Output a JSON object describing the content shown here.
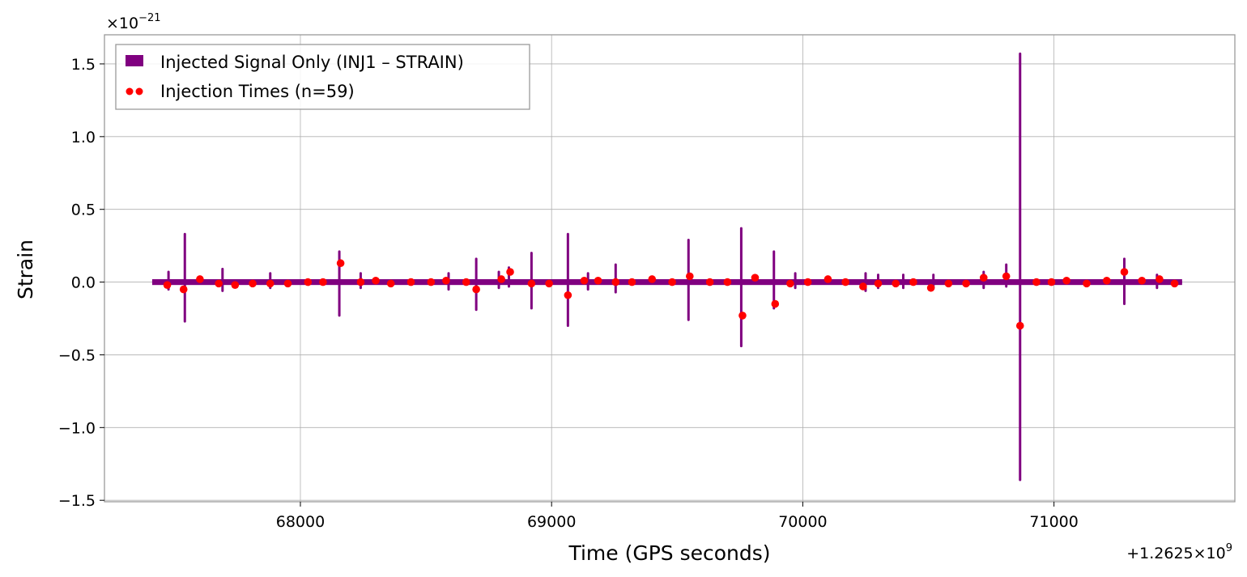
{
  "chart_data": {
    "type": "line",
    "xlabel": "Time (GPS seconds)",
    "ylabel": "Strain",
    "x_offset_label": "+1.2625×10",
    "x_offset_exp": "9",
    "y_scale_label": "×10",
    "y_scale_exp": "−21",
    "xlim": [
      67220,
      71720
    ],
    "ylim": [
      -1.51,
      1.7
    ],
    "grid": true,
    "x_ticks": [
      {
        "value": 68000,
        "label": "68000"
      },
      {
        "value": 69000,
        "label": "69000"
      },
      {
        "value": 70000,
        "label": "70000"
      },
      {
        "value": 71000,
        "label": "71000"
      }
    ],
    "y_ticks": [
      {
        "value": 1.5,
        "label": "1.5"
      },
      {
        "value": 1.0,
        "label": "1.0"
      },
      {
        "value": 0.5,
        "label": "0.5"
      },
      {
        "value": 0.0,
        "label": "0.0"
      },
      {
        "value": -0.5,
        "label": "−0.5"
      },
      {
        "value": -1.0,
        "label": "−1.0"
      },
      {
        "value": -1.5,
        "label": "−1.5"
      }
    ],
    "legend": {
      "placement": "top-left",
      "entries": [
        {
          "label": "Injected Signal Only (INJ1 – STRAIN)",
          "color": "#800080",
          "marker": "patch"
        },
        {
          "label": "Injection Times (n=59)",
          "color": "#ff0000",
          "marker": "dots"
        }
      ]
    },
    "series": [
      {
        "name": "Injected Signal Only (INJ1 – STRAIN)",
        "color": "#800080",
        "band": {
          "x_start": 67410,
          "x_end": 71510,
          "half_width": 0.02
        },
        "spikes": [
          {
            "x": 67475,
            "max": 0.07,
            "min": -0.05
          },
          {
            "x": 67540,
            "max": 0.33,
            "min": -0.27
          },
          {
            "x": 67690,
            "max": 0.09,
            "min": -0.06
          },
          {
            "x": 67880,
            "max": 0.06,
            "min": -0.04
          },
          {
            "x": 68155,
            "max": 0.21,
            "min": -0.23
          },
          {
            "x": 68240,
            "max": 0.06,
            "min": -0.04
          },
          {
            "x": 68590,
            "max": 0.06,
            "min": -0.05
          },
          {
            "x": 68700,
            "max": 0.16,
            "min": -0.19
          },
          {
            "x": 68790,
            "max": 0.07,
            "min": -0.04
          },
          {
            "x": 68830,
            "max": 0.1,
            "min": -0.03
          },
          {
            "x": 68920,
            "max": 0.2,
            "min": -0.18
          },
          {
            "x": 69065,
            "max": 0.33,
            "min": -0.3
          },
          {
            "x": 69145,
            "max": 0.06,
            "min": -0.05
          },
          {
            "x": 69255,
            "max": 0.12,
            "min": -0.07
          },
          {
            "x": 69545,
            "max": 0.29,
            "min": -0.26
          },
          {
            "x": 69755,
            "max": 0.37,
            "min": -0.44
          },
          {
            "x": 69885,
            "max": 0.21,
            "min": -0.18
          },
          {
            "x": 69970,
            "max": 0.06,
            "min": -0.04
          },
          {
            "x": 70250,
            "max": 0.06,
            "min": -0.06
          },
          {
            "x": 70300,
            "max": 0.05,
            "min": -0.04
          },
          {
            "x": 70400,
            "max": 0.05,
            "min": -0.04
          },
          {
            "x": 70520,
            "max": 0.05,
            "min": -0.04
          },
          {
            "x": 70720,
            "max": 0.07,
            "min": -0.04
          },
          {
            "x": 70810,
            "max": 0.12,
            "min": -0.03
          },
          {
            "x": 70865,
            "max": 1.57,
            "min": -1.36
          },
          {
            "x": 71280,
            "max": 0.16,
            "min": -0.15
          },
          {
            "x": 71410,
            "max": 0.05,
            "min": -0.04
          }
        ]
      },
      {
        "name": "Injection Times (n=59)",
        "color": "#ff0000",
        "points": [
          [
            67470,
            -0.02
          ],
          [
            67535,
            -0.05
          ],
          [
            67600,
            0.02
          ],
          [
            67675,
            -0.01
          ],
          [
            67740,
            -0.02
          ],
          [
            67810,
            -0.01
          ],
          [
            67880,
            -0.01
          ],
          [
            67950,
            -0.01
          ],
          [
            68030,
            0.0
          ],
          [
            68090,
            0.0
          ],
          [
            68160,
            0.13
          ],
          [
            68240,
            0.0
          ],
          [
            68300,
            0.01
          ],
          [
            68360,
            -0.01
          ],
          [
            68440,
            0.0
          ],
          [
            68520,
            0.0
          ],
          [
            68580,
            0.01
          ],
          [
            68660,
            0.0
          ],
          [
            68700,
            -0.05
          ],
          [
            68800,
            0.02
          ],
          [
            68835,
            0.07
          ],
          [
            68920,
            -0.01
          ],
          [
            68990,
            -0.01
          ],
          [
            69065,
            -0.09
          ],
          [
            69130,
            0.01
          ],
          [
            69185,
            0.01
          ],
          [
            69255,
            0.0
          ],
          [
            69320,
            0.0
          ],
          [
            69400,
            0.02
          ],
          [
            69480,
            0.0
          ],
          [
            69550,
            0.04
          ],
          [
            69630,
            0.0
          ],
          [
            69700,
            0.0
          ],
          [
            69760,
            -0.23
          ],
          [
            69810,
            0.03
          ],
          [
            69890,
            -0.15
          ],
          [
            69950,
            -0.01
          ],
          [
            70020,
            0.0
          ],
          [
            70100,
            0.02
          ],
          [
            70170,
            0.0
          ],
          [
            70240,
            -0.03
          ],
          [
            70300,
            -0.01
          ],
          [
            70370,
            -0.01
          ],
          [
            70440,
            0.0
          ],
          [
            70510,
            -0.04
          ],
          [
            70580,
            -0.01
          ],
          [
            70650,
            -0.01
          ],
          [
            70720,
            0.03
          ],
          [
            70810,
            0.04
          ],
          [
            70865,
            -0.3
          ],
          [
            70930,
            0.0
          ],
          [
            70990,
            0.0
          ],
          [
            71050,
            0.01
          ],
          [
            71130,
            -0.01
          ],
          [
            71210,
            0.01
          ],
          [
            71280,
            0.07
          ],
          [
            71350,
            0.01
          ],
          [
            71420,
            0.02
          ],
          [
            71480,
            -0.01
          ]
        ]
      }
    ]
  }
}
